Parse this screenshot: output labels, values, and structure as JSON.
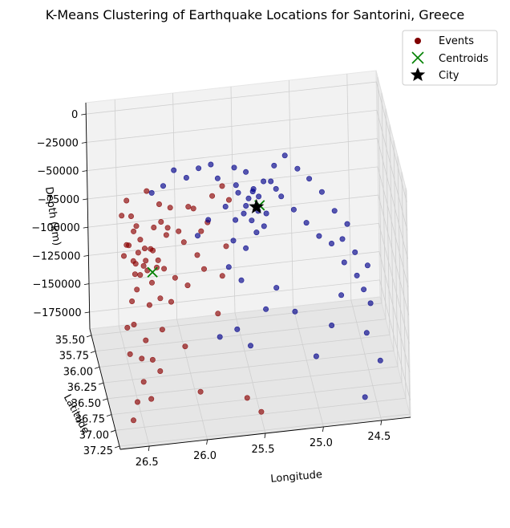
{
  "chart_data": {
    "type": "scatter",
    "title": "K-Means Clustering of Earthquake Locations for Santorini, Greece",
    "xlabel": "Longitude",
    "ylabel": "Latitude",
    "zlabel": "Depth (km)",
    "xticks": [
      "26.5",
      "26.0",
      "25.5",
      "25.0",
      "24.5"
    ],
    "yticks": [
      "35.50",
      "35.75",
      "36.00",
      "36.25",
      "36.50",
      "36.75",
      "37.00",
      "37.25"
    ],
    "zticks": [
      "0",
      "−25000",
      "−50000",
      "−75000",
      "−100000",
      "−125000",
      "−150000",
      "−175000"
    ],
    "xlim": [
      26.75,
      24.25
    ],
    "ylim": [
      35.4,
      37.3
    ],
    "zlim": [
      -190000,
      10000
    ],
    "grid": true,
    "legend_position": "top-right",
    "legend": [
      {
        "label": "Events",
        "marker": "circle",
        "color": "#800000"
      },
      {
        "label": "Centroids",
        "marker": "x",
        "color": "#008000"
      },
      {
        "label": "City",
        "marker": "star",
        "color": "#000000"
      }
    ],
    "series": [
      {
        "cluster": 1,
        "color": "#8b0000",
        "note": "red cluster",
        "points_lon_lat_depth": [
          [
            26.55,
            36.45,
            -20000
          ],
          [
            26.5,
            36.5,
            -45000
          ],
          [
            26.6,
            36.6,
            -60000
          ],
          [
            26.45,
            36.4,
            -70000
          ],
          [
            26.5,
            36.55,
            -80000
          ],
          [
            26.4,
            36.35,
            -85000
          ],
          [
            26.55,
            36.7,
            -95000
          ],
          [
            26.35,
            36.45,
            -65000
          ],
          [
            26.3,
            36.3,
            -55000
          ],
          [
            26.4,
            36.6,
            -75000
          ],
          [
            26.5,
            36.65,
            -88000
          ],
          [
            26.6,
            36.5,
            -30000
          ],
          [
            26.45,
            36.55,
            -50000
          ],
          [
            26.35,
            36.5,
            -92000
          ],
          [
            26.25,
            36.4,
            -45000
          ],
          [
            26.3,
            36.55,
            -70000
          ],
          [
            26.2,
            36.35,
            -60000
          ],
          [
            26.4,
            36.7,
            -100000
          ],
          [
            26.55,
            36.8,
            -110000
          ],
          [
            26.6,
            36.9,
            -130000
          ],
          [
            26.5,
            37.0,
            -150000
          ],
          [
            26.45,
            37.1,
            -160000
          ],
          [
            26.55,
            36.95,
            -170000
          ],
          [
            26.6,
            37.05,
            -180000
          ],
          [
            26.4,
            36.85,
            -140000
          ],
          [
            26.3,
            36.75,
            -120000
          ],
          [
            26.15,
            36.5,
            -90000
          ],
          [
            26.1,
            36.4,
            -55000
          ],
          [
            26.0,
            36.3,
            -40000
          ],
          [
            25.9,
            36.35,
            -60000
          ],
          [
            25.95,
            36.45,
            -75000
          ],
          [
            25.85,
            36.4,
            -50000
          ],
          [
            25.8,
            36.35,
            -30000
          ],
          [
            25.9,
            36.5,
            -85000
          ],
          [
            26.05,
            36.55,
            -95000
          ],
          [
            26.2,
            36.6,
            -105000
          ],
          [
            25.8,
            36.6,
            -120000
          ],
          [
            25.7,
            36.45,
            -70000
          ],
          [
            25.75,
            36.55,
            -90000
          ],
          [
            26.1,
            36.7,
            -140000
          ],
          [
            26.0,
            36.9,
            -170000
          ],
          [
            25.6,
            36.9,
            -180000
          ],
          [
            25.5,
            37.05,
            -185000
          ],
          [
            26.25,
            36.3,
            -35000
          ],
          [
            26.35,
            36.25,
            -25000
          ],
          [
            26.5,
            36.35,
            -40000
          ],
          [
            26.45,
            36.3,
            -52000
          ],
          [
            26.55,
            36.4,
            -62000
          ],
          [
            26.4,
            36.5,
            -72000
          ],
          [
            26.3,
            36.45,
            -82000
          ],
          [
            26.5,
            36.6,
            -68000
          ],
          [
            26.35,
            36.6,
            -58000
          ],
          [
            26.25,
            36.55,
            -78000
          ],
          [
            26.2,
            36.45,
            -48000
          ],
          [
            26.05,
            36.35,
            -68000
          ],
          [
            25.95,
            36.25,
            -45000
          ],
          [
            26.6,
            36.75,
            -115000
          ],
          [
            26.45,
            36.8,
            -125000
          ],
          [
            26.5,
            36.9,
            -135000
          ],
          [
            26.35,
            36.95,
            -145000
          ],
          [
            25.65,
            36.3,
            -38000
          ],
          [
            25.7,
            36.25,
            -28000
          ],
          [
            26.15,
            36.25,
            -42000
          ],
          [
            26.3,
            36.65,
            -98000
          ],
          [
            26.4,
            36.45,
            -64000
          ],
          [
            26.5,
            36.45,
            -74000
          ],
          [
            26.45,
            36.5,
            -84000
          ],
          [
            26.55,
            36.55,
            -54000
          ]
        ]
      },
      {
        "cluster": 2,
        "color": "#00008b",
        "note": "blue cluster",
        "points_lon_lat_depth": [
          [
            25.6,
            36.4,
            -20000
          ],
          [
            25.5,
            36.45,
            -30000
          ],
          [
            25.55,
            36.5,
            -40000
          ],
          [
            25.45,
            36.4,
            -25000
          ],
          [
            25.4,
            36.35,
            -35000
          ],
          [
            25.5,
            36.3,
            -15000
          ],
          [
            25.6,
            36.3,
            -10000
          ],
          [
            25.35,
            36.45,
            -45000
          ],
          [
            25.3,
            36.4,
            -20000
          ],
          [
            25.25,
            36.35,
            -30000
          ],
          [
            25.45,
            36.55,
            -55000
          ],
          [
            25.55,
            36.6,
            -65000
          ],
          [
            25.2,
            36.3,
            -40000
          ],
          [
            25.1,
            36.35,
            -50000
          ],
          [
            25.0,
            36.4,
            -60000
          ],
          [
            24.9,
            36.45,
            -70000
          ],
          [
            24.8,
            36.5,
            -75000
          ],
          [
            24.7,
            36.55,
            -90000
          ],
          [
            24.6,
            36.6,
            -100000
          ],
          [
            24.5,
            36.7,
            -120000
          ],
          [
            24.55,
            36.8,
            -140000
          ],
          [
            24.45,
            36.9,
            -160000
          ],
          [
            24.6,
            37.0,
            -185000
          ],
          [
            24.75,
            36.7,
            -110000
          ],
          [
            24.85,
            36.8,
            -130000
          ],
          [
            25.0,
            36.9,
            -150000
          ],
          [
            25.15,
            36.7,
            -120000
          ],
          [
            25.3,
            36.65,
            -100000
          ],
          [
            25.4,
            36.7,
            -115000
          ],
          [
            25.65,
            36.55,
            -60000
          ],
          [
            25.7,
            36.45,
            -35000
          ],
          [
            25.75,
            36.35,
            -15000
          ],
          [
            25.8,
            36.3,
            -5000
          ],
          [
            25.9,
            36.25,
            -10000
          ],
          [
            26.0,
            36.2,
            -20000
          ],
          [
            26.1,
            36.15,
            -15000
          ],
          [
            26.2,
            36.2,
            -25000
          ],
          [
            26.3,
            36.2,
            -30000
          ],
          [
            25.85,
            36.45,
            -45000
          ],
          [
            25.95,
            36.5,
            -55000
          ],
          [
            25.65,
            36.7,
            -130000
          ],
          [
            25.55,
            36.8,
            -140000
          ],
          [
            24.95,
            36.25,
            -30000
          ],
          [
            24.85,
            36.3,
            -40000
          ],
          [
            24.75,
            36.35,
            -55000
          ],
          [
            24.65,
            36.4,
            -65000
          ],
          [
            25.05,
            36.25,
            -20000
          ],
          [
            25.15,
            36.2,
            -10000
          ],
          [
            25.25,
            36.25,
            -15000
          ],
          [
            25.35,
            36.3,
            -25000
          ],
          [
            25.45,
            36.35,
            -30000
          ],
          [
            25.52,
            36.42,
            -38000
          ],
          [
            25.48,
            36.48,
            -48000
          ],
          [
            25.58,
            36.38,
            -28000
          ],
          [
            25.42,
            36.45,
            -42000
          ],
          [
            25.38,
            36.52,
            -52000
          ],
          [
            25.62,
            36.48,
            -46000
          ],
          [
            25.7,
            36.6,
            -80000
          ],
          [
            25.6,
            36.65,
            -90000
          ],
          [
            25.8,
            36.7,
            -135000
          ],
          [
            24.7,
            36.45,
            -75000
          ],
          [
            24.6,
            36.5,
            -85000
          ],
          [
            24.5,
            36.55,
            -95000
          ],
          [
            24.55,
            36.65,
            -110000
          ]
        ]
      }
    ],
    "centroids_lon_lat_depth": [
      [
        26.35,
        36.55,
        -80000
      ],
      [
        25.4,
        36.4,
        -40000
      ]
    ],
    "city_lon_lat_depth": [
      25.43,
      36.42,
      -40000
    ]
  }
}
